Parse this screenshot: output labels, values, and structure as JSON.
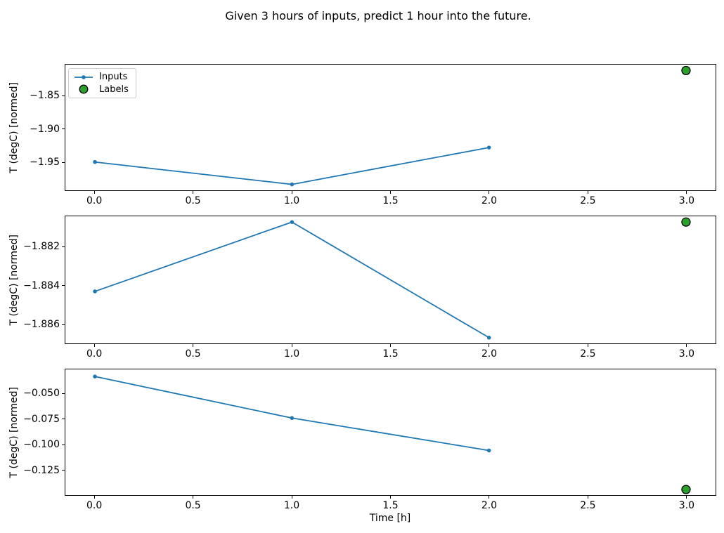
{
  "title": "Given 3 hours of inputs, predict 1 hour into the future.",
  "xlabel": "Time [h]",
  "legend": {
    "inputs_label": "Inputs",
    "labels_label": "Labels"
  },
  "colors": {
    "inputs": "#1f77b4",
    "labels_fill": "#2ca02c",
    "labels_edge": "#000000",
    "axis": "#000000",
    "legend_border": "#cccccc"
  },
  "chart_data": [
    {
      "type": "line",
      "title": "",
      "xlabel": "",
      "ylabel": "T (degC) [normed]",
      "xlim": [
        -0.15,
        3.15
      ],
      "ylim": [
        -1.993,
        -1.802
      ],
      "xticks": [
        0,
        0.5,
        1,
        1.5,
        2,
        2.5,
        3
      ],
      "xtick_labels": [
        "0.0",
        "0.5",
        "1.0",
        "1.5",
        "2.0",
        "2.5",
        "3.0"
      ],
      "yticks": [
        -1.85,
        -1.9,
        -1.95
      ],
      "ytick_labels": [
        "−1.85",
        "−1.90",
        "−1.95"
      ],
      "series": [
        {
          "name": "Inputs",
          "kind": "line",
          "x": [
            0,
            1,
            2
          ],
          "y": [
            -1.95,
            -1.984,
            -1.928
          ]
        },
        {
          "name": "Labels",
          "kind": "scatter",
          "x": [
            3
          ],
          "y": [
            -1.811
          ]
        }
      ]
    },
    {
      "type": "line",
      "title": "",
      "xlabel": "",
      "ylabel": "T (degC) [normed]",
      "xlim": [
        -0.15,
        3.15
      ],
      "ylim": [
        -1.887,
        -1.8804
      ],
      "xticks": [
        0,
        0.5,
        1,
        1.5,
        2,
        2.5,
        3
      ],
      "xtick_labels": [
        "0.0",
        "0.5",
        "1.0",
        "1.5",
        "2.0",
        "2.5",
        "3.0"
      ],
      "yticks": [
        -1.882,
        -1.884,
        -1.886
      ],
      "ytick_labels": [
        "−1.882",
        "−1.884",
        "−1.886"
      ],
      "series": [
        {
          "name": "Inputs",
          "kind": "line",
          "x": [
            0,
            1,
            2
          ],
          "y": [
            -1.8843,
            -1.8807,
            -1.8867
          ]
        },
        {
          "name": "Labels",
          "kind": "scatter",
          "x": [
            3
          ],
          "y": [
            -1.8807
          ]
        }
      ]
    },
    {
      "type": "line",
      "title": "",
      "xlabel": "Time [h]",
      "ylabel": "T (degC) [normed]",
      "xlim": [
        -0.15,
        3.15
      ],
      "ylim": [
        -0.15,
        -0.026
      ],
      "xticks": [
        0,
        0.5,
        1,
        1.5,
        2,
        2.5,
        3
      ],
      "xtick_labels": [
        "0.0",
        "0.5",
        "1.0",
        "1.5",
        "2.0",
        "2.5",
        "3.0"
      ],
      "yticks": [
        -0.05,
        -0.075,
        -0.1,
        -0.125
      ],
      "ytick_labels": [
        "−0.050",
        "−0.075",
        "−0.100",
        "−0.125"
      ],
      "series": [
        {
          "name": "Inputs",
          "kind": "line",
          "x": [
            0,
            1,
            2
          ],
          "y": [
            -0.033,
            -0.074,
            -0.106
          ]
        },
        {
          "name": "Labels",
          "kind": "scatter",
          "x": [
            3
          ],
          "y": [
            -0.1445
          ]
        }
      ]
    }
  ]
}
